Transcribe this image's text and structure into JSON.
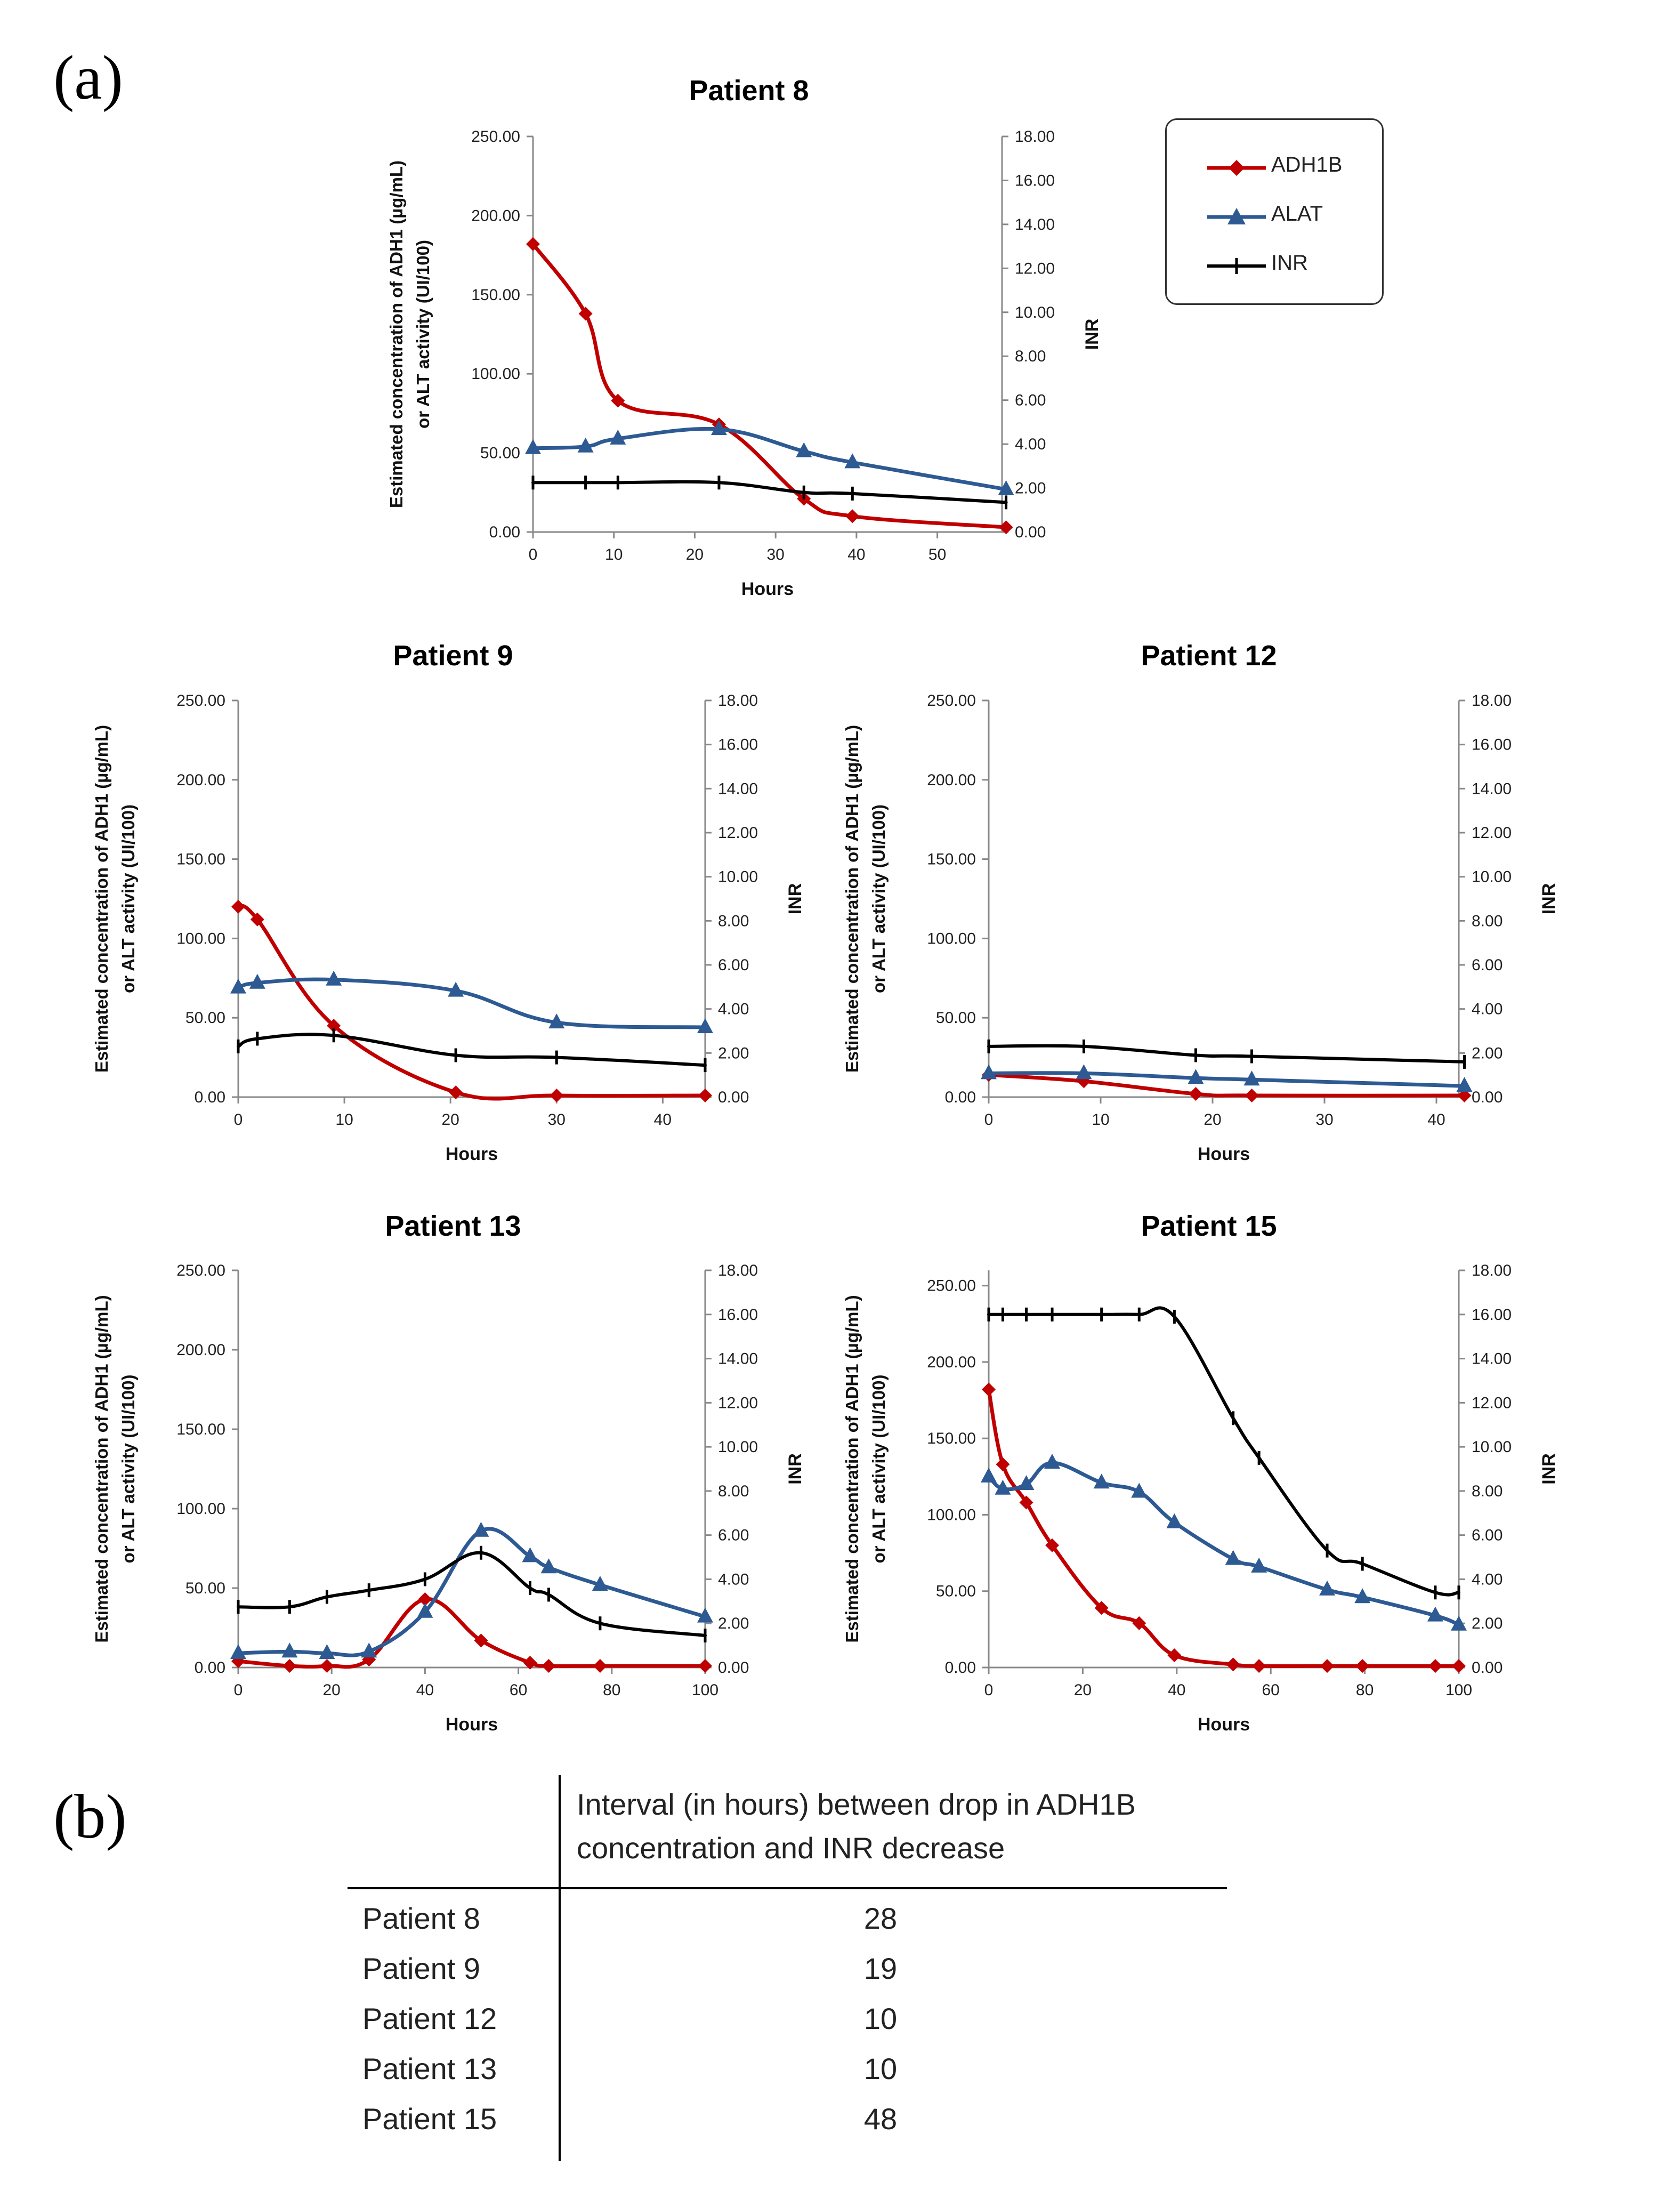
{
  "figure": {
    "panel_a_label": "(a)",
    "panel_b_label": "(b)",
    "colors": {
      "ADH1B": "#c00000",
      "ALAT": "#2e5a93",
      "INR": "#000000"
    }
  },
  "legend": {
    "items": [
      {
        "label": "ADH1B"
      },
      {
        "label": "ALAT"
      },
      {
        "label": "INR"
      }
    ]
  },
  "chart_data": [
    {
      "id": "p8",
      "type": "line",
      "title": "Patient 8",
      "xlabel": "Hours",
      "ylabel_left_line1": "Estimated concentration of ADH1 (µg/mL)",
      "ylabel_left_line2": "or ALT activity (UI/100)",
      "ylabel_right": "INR",
      "xlim": [
        0,
        58
      ],
      "xticks": [
        0,
        10,
        20,
        30,
        40,
        50
      ],
      "ylim_left": [
        0,
        250
      ],
      "yticks_left": [
        "0.00",
        "50.00",
        "100.00",
        "150.00",
        "200.00",
        "250.00"
      ],
      "ylim_right": [
        0,
        18
      ],
      "yticks_right": [
        "0.00",
        "2.00",
        "4.00",
        "6.00",
        "8.00",
        "10.00",
        "12.00",
        "14.00",
        "16.00",
        "18.00"
      ],
      "series": [
        {
          "name": "ADH1B",
          "axis": "left",
          "points": [
            [
              0,
              182
            ],
            [
              6.5,
              138
            ],
            [
              10.5,
              83
            ],
            [
              23,
              68
            ],
            [
              33.5,
              21
            ],
            [
              39.5,
              10
            ],
            [
              58.5,
              3
            ]
          ]
        },
        {
          "name": "ALAT",
          "axis": "left",
          "points": [
            [
              0,
              53
            ],
            [
              6.5,
              54
            ],
            [
              10.5,
              59
            ],
            [
              23,
              65
            ],
            [
              33.5,
              51
            ],
            [
              39.5,
              44
            ],
            [
              58.5,
              27
            ]
          ]
        },
        {
          "name": "INR",
          "axis": "right",
          "points": [
            [
              0,
              2.25
            ],
            [
              6.5,
              2.25
            ],
            [
              10.5,
              2.25
            ],
            [
              23,
              2.25
            ],
            [
              33.5,
              1.8
            ],
            [
              39.5,
              1.75
            ],
            [
              58.5,
              1.35
            ]
          ]
        }
      ]
    },
    {
      "id": "p9",
      "type": "line",
      "title": "Patient 9",
      "xlabel": "Hours",
      "ylabel_left_line1": "Estimated concentration of ADH1 (µg/mL)",
      "ylabel_left_line2": "or ALT activity (UI/100)",
      "ylabel_right": "INR",
      "xlim": [
        0,
        44
      ],
      "xticks": [
        0,
        10,
        20,
        30,
        40
      ],
      "ylim_left": [
        0,
        250
      ],
      "yticks_left": [
        "0.00",
        "50.00",
        "100.00",
        "150.00",
        "200.00",
        "250.00"
      ],
      "ylim_right": [
        0,
        18
      ],
      "yticks_right": [
        "0.00",
        "2.00",
        "4.00",
        "6.00",
        "8.00",
        "10.00",
        "12.00",
        "14.00",
        "16.00",
        "18.00"
      ],
      "series": [
        {
          "name": "ADH1B",
          "axis": "left",
          "points": [
            [
              0,
              120
            ],
            [
              1.8,
              112
            ],
            [
              9,
              45
            ],
            [
              20.5,
              3
            ],
            [
              30,
              1
            ],
            [
              44,
              1
            ]
          ]
        },
        {
          "name": "ALAT",
          "axis": "left",
          "points": [
            [
              0,
              69
            ],
            [
              1.8,
              72
            ],
            [
              9,
              74
            ],
            [
              20.5,
              67
            ],
            [
              30,
              47
            ],
            [
              44,
              44
            ]
          ]
        },
        {
          "name": "INR",
          "axis": "right",
          "points": [
            [
              0,
              2.3
            ],
            [
              1.8,
              2.65
            ],
            [
              9,
              2.8
            ],
            [
              20.5,
              1.9
            ],
            [
              30,
              1.8
            ],
            [
              44,
              1.45
            ]
          ]
        }
      ]
    },
    {
      "id": "p12",
      "type": "line",
      "title": "Patient 12",
      "xlabel": "Hours",
      "ylabel_left_line1": "Estimated concentration of ADH1 (µg/mL)",
      "ylabel_left_line2": "or ALT activity (UI/100)",
      "ylabel_right": "INR",
      "xlim": [
        0,
        42
      ],
      "xticks": [
        0,
        10,
        20,
        30,
        40
      ],
      "ylim_left": [
        0,
        250
      ],
      "yticks_left": [
        "0.00",
        "50.00",
        "100.00",
        "150.00",
        "200.00",
        "250.00"
      ],
      "ylim_right": [
        0,
        18
      ],
      "yticks_right": [
        "0.00",
        "2.00",
        "4.00",
        "6.00",
        "8.00",
        "10.00",
        "12.00",
        "14.00",
        "16.00",
        "18.00"
      ],
      "series": [
        {
          "name": "ADH1B",
          "axis": "left",
          "points": [
            [
              0,
              14
            ],
            [
              8.5,
              10
            ],
            [
              18.5,
              2
            ],
            [
              23.5,
              1
            ],
            [
              42.5,
              1
            ]
          ]
        },
        {
          "name": "ALAT",
          "axis": "left",
          "points": [
            [
              0,
              15
            ],
            [
              8.5,
              15
            ],
            [
              18.5,
              12
            ],
            [
              23.5,
              11
            ],
            [
              42.5,
              7
            ]
          ]
        },
        {
          "name": "INR",
          "axis": "right",
          "points": [
            [
              0,
              2.3
            ],
            [
              8.5,
              2.3
            ],
            [
              18.5,
              1.9
            ],
            [
              23.5,
              1.85
            ],
            [
              42.5,
              1.6
            ]
          ]
        }
      ]
    },
    {
      "id": "p13",
      "type": "line",
      "title": "Patient 13",
      "xlabel": "Hours",
      "ylabel_left_line1": "Estimated concentration of ADH1 (µg/mL)",
      "ylabel_left_line2": "or ALT activity (UI/100)",
      "ylabel_right": "INR",
      "xlim": [
        0,
        100
      ],
      "xticks": [
        0,
        20,
        40,
        60,
        80,
        100
      ],
      "ylim_left": [
        0,
        250
      ],
      "yticks_left": [
        "0.00",
        "50.00",
        "100.00",
        "150.00",
        "200.00",
        "250.00"
      ],
      "ylim_right": [
        0,
        18
      ],
      "yticks_right": [
        "0.00",
        "2.00",
        "4.00",
        "6.00",
        "8.00",
        "10.00",
        "12.00",
        "14.00",
        "16.00",
        "18.00"
      ],
      "series": [
        {
          "name": "ADH1B",
          "axis": "left",
          "points": [
            [
              0,
              4
            ],
            [
              11,
              1
            ],
            [
              19,
              1
            ],
            [
              28,
              5
            ],
            [
              40,
              43
            ],
            [
              52,
              17
            ],
            [
              62.5,
              3
            ],
            [
              66.5,
              1
            ],
            [
              77.5,
              1
            ],
            [
              100,
              1
            ]
          ]
        },
        {
          "name": "ALAT",
          "axis": "left",
          "points": [
            [
              0,
              9
            ],
            [
              11,
              10
            ],
            [
              19,
              9
            ],
            [
              28,
              10
            ],
            [
              40,
              35
            ],
            [
              52,
              86
            ],
            [
              62.5,
              70
            ],
            [
              66.5,
              63
            ],
            [
              77.5,
              52
            ],
            [
              100,
              32
            ]
          ]
        },
        {
          "name": "INR",
          "axis": "right",
          "points": [
            [
              0,
              2.75
            ],
            [
              11,
              2.75
            ],
            [
              19,
              3.2
            ],
            [
              28,
              3.5
            ],
            [
              40,
              4.0
            ],
            [
              52,
              5.2
            ],
            [
              62.5,
              3.6
            ],
            [
              66.5,
              3.3
            ],
            [
              77.5,
              2.0
            ],
            [
              100,
              1.45
            ]
          ]
        }
      ]
    },
    {
      "id": "p15",
      "type": "line",
      "title": "Patient 15",
      "xlabel": "Hours",
      "ylabel_left_line1": "Estimated concentration of ADH1 (µg/mL)",
      "ylabel_left_line2": "or ALT activity (UI/100)",
      "ylabel_right": "INR",
      "xlim": [
        0,
        100
      ],
      "xticks": [
        0,
        20,
        40,
        60,
        80,
        100
      ],
      "ylim_left": [
        0,
        260
      ],
      "yticks_left": [
        "0.00",
        "50.00",
        "100.00",
        "150.00",
        "200.00",
        "250.00"
      ],
      "ylim_right": [
        0,
        18
      ],
      "yticks_right": [
        "0.00",
        "2.00",
        "4.00",
        "6.00",
        "8.00",
        "10.00",
        "12.00",
        "14.00",
        "16.00",
        "18.00"
      ],
      "series": [
        {
          "name": "ADH1B",
          "axis": "left",
          "points": [
            [
              0,
              182
            ],
            [
              3,
              133
            ],
            [
              8,
              108
            ],
            [
              13.5,
              80
            ],
            [
              24,
              39
            ],
            [
              32,
              29
            ],
            [
              39.5,
              8
            ],
            [
              52,
              2
            ],
            [
              57.5,
              1
            ],
            [
              72,
              1
            ],
            [
              79.5,
              1
            ],
            [
              95,
              1
            ],
            [
              100,
              1
            ]
          ]
        },
        {
          "name": "ALAT",
          "axis": "left",
          "points": [
            [
              0,
              125
            ],
            [
              3,
              117
            ],
            [
              8,
              120
            ],
            [
              13.5,
              134
            ],
            [
              24,
              121
            ],
            [
              32,
              115
            ],
            [
              39.5,
              95
            ],
            [
              52,
              71
            ],
            [
              57.5,
              66
            ],
            [
              72,
              51
            ],
            [
              79.5,
              46
            ],
            [
              95,
              34
            ],
            [
              100,
              28
            ]
          ]
        },
        {
          "name": "INR",
          "axis": "right",
          "points": [
            [
              0,
              16.0
            ],
            [
              3,
              16.0
            ],
            [
              8,
              16.0
            ],
            [
              13.5,
              16.0
            ],
            [
              24,
              16.0
            ],
            [
              32,
              16.0
            ],
            [
              39.5,
              15.9
            ],
            [
              52,
              11.3
            ],
            [
              57.5,
              9.5
            ],
            [
              72,
              5.3
            ],
            [
              79.5,
              4.7
            ],
            [
              95,
              3.4
            ],
            [
              100,
              3.4
            ]
          ]
        }
      ]
    }
  ],
  "table": {
    "header_line1": "Interval (in hours) between drop in ADH1B",
    "header_line2": "concentration and INR decrease",
    "rows": [
      {
        "label": "Patient 8",
        "value": "28"
      },
      {
        "label": "Patient 9",
        "value": "19"
      },
      {
        "label": "Patient 12",
        "value": "10"
      },
      {
        "label": "Patient 13",
        "value": "10"
      },
      {
        "label": "Patient 15",
        "value": "48"
      }
    ]
  }
}
